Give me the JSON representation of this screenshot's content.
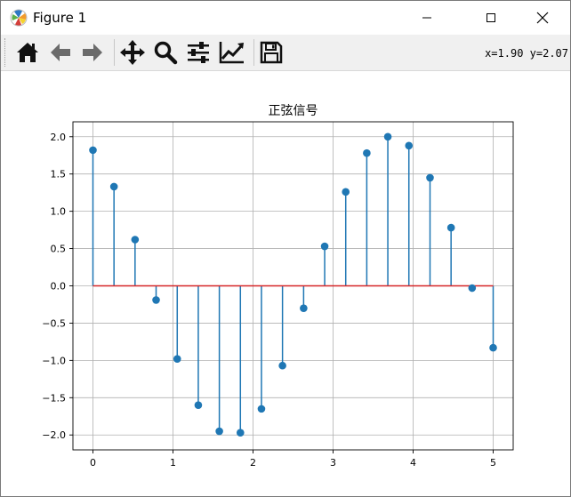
{
  "window": {
    "title": "Figure 1"
  },
  "toolbar": {
    "buttons": [
      {
        "name": "home-button",
        "icon": "home-icon"
      },
      {
        "name": "back-button",
        "icon": "arrow-left-icon"
      },
      {
        "name": "forward-button",
        "icon": "arrow-right-icon"
      },
      {
        "name": "pan-button",
        "icon": "move-icon"
      },
      {
        "name": "zoom-button",
        "icon": "magnifier-icon"
      },
      {
        "name": "subplots-button",
        "icon": "sliders-icon"
      },
      {
        "name": "edit-axis-button",
        "icon": "chart-line-icon"
      },
      {
        "name": "save-button",
        "icon": "floppy-disk-icon"
      }
    ],
    "coords": "x=1.90 y=2.07"
  },
  "chart_data": {
    "type": "stem",
    "title": "正弦信号",
    "xlabel": "",
    "ylabel": "",
    "xlim": [
      -0.25,
      5.25
    ],
    "ylim": [
      -2.2,
      2.2
    ],
    "xticks": [
      0,
      1,
      2,
      3,
      4,
      5
    ],
    "yticks": [
      2.0,
      1.5,
      1.0,
      0.5,
      0.0,
      -0.5,
      -1.0,
      -1.5,
      -2.0
    ],
    "ytick_labels": [
      "2.0",
      "1.5",
      "1.0",
      "0.5",
      "0.0",
      "−0.5",
      "−1.0",
      "−1.5",
      "−2.0"
    ],
    "grid": true,
    "colors": {
      "stem": "#1f77b4",
      "baseline": "#d62728"
    },
    "x": [
      0.0,
      0.263,
      0.526,
      0.789,
      1.053,
      1.316,
      1.579,
      1.842,
      2.105,
      2.368,
      2.632,
      2.895,
      3.158,
      3.421,
      3.684,
      3.947,
      4.211,
      4.474,
      4.737,
      5.0
    ],
    "y": [
      1.82,
      1.33,
      0.62,
      -0.19,
      -0.98,
      -1.6,
      -1.95,
      -1.97,
      -1.65,
      -1.07,
      -0.3,
      0.53,
      1.26,
      1.78,
      2.0,
      1.88,
      1.45,
      0.78,
      -0.03,
      -0.83
    ]
  }
}
